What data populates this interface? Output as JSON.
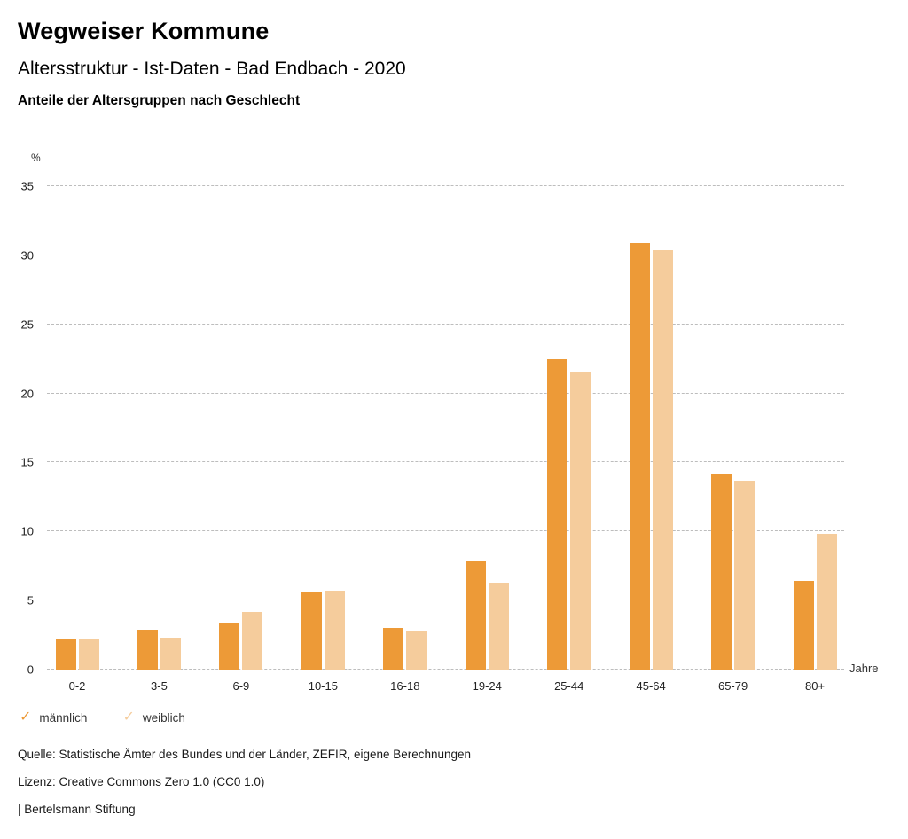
{
  "header": {
    "title": "Wegweiser Kommune",
    "subtitle": "Altersstruktur - Ist-Daten - Bad Endbach - 2020",
    "chart_heading": "Anteile der Altersgruppen nach Geschlecht"
  },
  "chart_data": {
    "type": "bar",
    "title": "Anteile der Altersgruppen nach Geschlecht",
    "ylabel": "%",
    "xlabel": "Jahre",
    "ylim": [
      0,
      35
    ],
    "ytick_step": 5,
    "grid": "horizontal-dotted",
    "legend_position": "bottom-left",
    "categories": [
      "0-2",
      "3-5",
      "6-9",
      "10-15",
      "16-18",
      "19-24",
      "25-44",
      "45-64",
      "65-79",
      "80+"
    ],
    "series": [
      {
        "name": "männlich",
        "color": "#ED9A37",
        "values": [
          2.2,
          2.9,
          3.4,
          5.6,
          3.0,
          7.9,
          22.5,
          30.9,
          14.1,
          6.4
        ]
      },
      {
        "name": "weiblich",
        "color": "#F5CC9C",
        "values": [
          2.2,
          2.3,
          4.2,
          5.7,
          2.8,
          6.3,
          21.6,
          30.4,
          13.7,
          9.8
        ]
      }
    ]
  },
  "legend": {
    "items": [
      {
        "label": "männlich",
        "color": "#ED9A37",
        "icon": "check-icon"
      },
      {
        "label": "weiblich",
        "color": "#F5CC9C",
        "icon": "check-icon"
      }
    ],
    "check_glyph": "✓"
  },
  "footer": {
    "source": "Quelle: Statistische Ämter des Bundes und der Länder, ZEFIR, eigene Berechnungen",
    "license": "Lizenz: Creative Commons Zero 1.0 (CC0 1.0)",
    "attribution": "| Bertelsmann Stiftung"
  }
}
